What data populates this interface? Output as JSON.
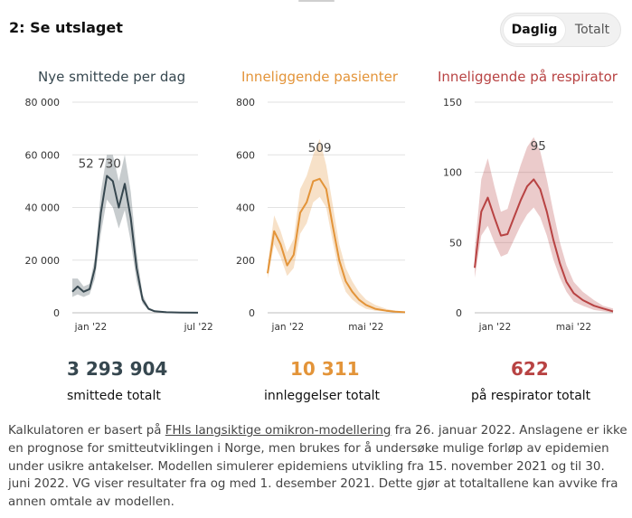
{
  "section": {
    "title": "2: Se utslaget"
  },
  "toggle": {
    "options": [
      "Daglig",
      "Totalt"
    ],
    "selected": "Daglig"
  },
  "colors": {
    "cases": "#36474f",
    "hospital": "#e39439",
    "respirator": "#b84343"
  },
  "charts": [
    {
      "title": "Nye smittede per dag",
      "yticks": [
        "80 000",
        "60 000",
        "40 000",
        "20 000",
        "0"
      ],
      "xticks": [
        "jan '22",
        "jul '22"
      ],
      "peak_label": "52 730",
      "total": "3 293 904",
      "total_label": "smittede totalt"
    },
    {
      "title": "Inneliggende pasienter",
      "yticks": [
        "800",
        "600",
        "400",
        "200",
        "0"
      ],
      "xticks": [
        "jan '22",
        "mai '22"
      ],
      "peak_label": "509",
      "total": "10 311",
      "total_label": "innleggelser totalt"
    },
    {
      "title": "Inneliggende på respirator",
      "yticks": [
        "150",
        "100",
        "50",
        "0"
      ],
      "xticks": [
        "jan '22",
        "mai '22"
      ],
      "peak_label": "95",
      "total": "622",
      "total_label": "på respirator totalt"
    }
  ],
  "chart_data": [
    {
      "type": "line",
      "title": "Nye smittede per dag",
      "ylim": [
        0,
        80000
      ],
      "x": [
        "2021-12-01",
        "2021-12-10",
        "2021-12-20",
        "2021-12-30",
        "2022-01-08",
        "2022-01-18",
        "2022-01-28",
        "2022-02-07",
        "2022-02-17",
        "2022-02-27",
        "2022-03-09",
        "2022-03-19",
        "2022-03-29",
        "2022-04-08",
        "2022-04-18",
        "2022-05-08",
        "2022-06-01",
        "2022-06-30"
      ],
      "series": [
        {
          "values": [
            8000,
            10000,
            8000,
            9000,
            17000,
            38000,
            52000,
            50000,
            40000,
            49000,
            36000,
            17000,
            5000,
            1500,
            600,
            200,
            100,
            50
          ],
          "lower": [
            6000,
            7000,
            6000,
            7000,
            13000,
            30000,
            43000,
            40000,
            32000,
            39000,
            27000,
            12000,
            3500,
            1000,
            400,
            100,
            50,
            20
          ],
          "upper": [
            13000,
            13000,
            10000,
            11000,
            21000,
            46000,
            60000,
            60000,
            50000,
            60000,
            46000,
            23000,
            7000,
            2000,
            800,
            300,
            150,
            80
          ]
        }
      ]
    },
    {
      "type": "line",
      "title": "Inneliggende pasienter",
      "ylim": [
        0,
        800
      ],
      "x": [
        "2021-12-01",
        "2021-12-11",
        "2021-12-21",
        "2021-12-31",
        "2022-01-10",
        "2022-01-20",
        "2022-01-30",
        "2022-02-09",
        "2022-02-19",
        "2022-03-01",
        "2022-03-11",
        "2022-03-21",
        "2022-03-31",
        "2022-04-10",
        "2022-04-20",
        "2022-05-01",
        "2022-05-15",
        "2022-06-01",
        "2022-06-15",
        "2022-06-30"
      ],
      "series": [
        {
          "values": [
            150,
            310,
            260,
            180,
            220,
            380,
            420,
            500,
            509,
            470,
            330,
            200,
            120,
            80,
            50,
            30,
            15,
            8,
            4,
            2
          ],
          "lower": [
            130,
            260,
            210,
            140,
            170,
            300,
            340,
            420,
            440,
            400,
            270,
            150,
            80,
            50,
            30,
            15,
            8,
            4,
            2,
            1
          ],
          "upper": [
            180,
            370,
            310,
            230,
            280,
            470,
            520,
            600,
            660,
            560,
            410,
            260,
            170,
            120,
            80,
            50,
            30,
            15,
            8,
            4
          ]
        }
      ]
    },
    {
      "type": "line",
      "title": "Inneliggende på respirator",
      "ylim": [
        0,
        150
      ],
      "x": [
        "2021-12-01",
        "2021-12-11",
        "2021-12-21",
        "2021-12-31",
        "2022-01-10",
        "2022-01-20",
        "2022-01-30",
        "2022-02-09",
        "2022-02-19",
        "2022-03-01",
        "2022-03-11",
        "2022-03-21",
        "2022-03-31",
        "2022-04-10",
        "2022-04-20",
        "2022-05-01",
        "2022-05-15",
        "2022-06-01",
        "2022-06-15",
        "2022-06-30"
      ],
      "series": [
        {
          "values": [
            32,
            72,
            82,
            68,
            55,
            56,
            68,
            80,
            90,
            95,
            88,
            72,
            52,
            35,
            22,
            14,
            9,
            5,
            3,
            1
          ],
          "lower": [
            25,
            55,
            62,
            50,
            40,
            42,
            52,
            62,
            70,
            75,
            68,
            55,
            38,
            25,
            15,
            8,
            5,
            2,
            1,
            0
          ],
          "upper": [
            45,
            95,
            110,
            90,
            72,
            74,
            90,
            105,
            118,
            125,
            115,
            95,
            72,
            50,
            34,
            22,
            15,
            9,
            5,
            3
          ]
        }
      ]
    }
  ],
  "footer": {
    "pre": "Kalkulatoren er basert på ",
    "link": "FHIs langsiktige omikron-modellering",
    "post": " fra 26. januar 2022. Anslagene er ikke en prognose for smitteutviklingen i Norge, men brukes for å undersøke mulige forløp av epidemien under usikre antakelser. Modellen simulerer epidemiens utvikling fra 15. november 2021 og til 30. juni 2022. VG viser resultater fra og med 1. desember 2021. Dette gjør at totaltallene kan avvike fra annen omtale av modellen."
  }
}
